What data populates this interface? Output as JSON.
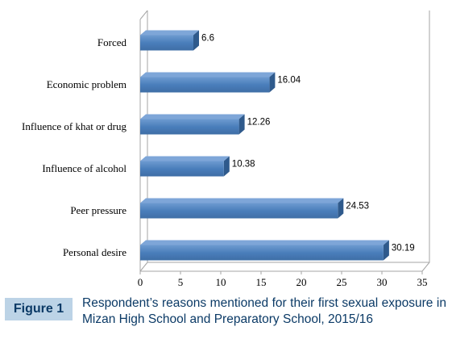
{
  "chart_data": {
    "type": "bar",
    "orientation": "horizontal",
    "categories": [
      "Forced",
      "Economic problem",
      "Influence of khat or drug",
      "Influence of alcohol",
      "Peer pressure",
      "Personal desire"
    ],
    "values": [
      6.6,
      16.04,
      12.26,
      10.38,
      24.53,
      30.19
    ],
    "value_labels": [
      "6.6",
      "16.04",
      "12.26",
      "10.38",
      "24.53",
      "30.19"
    ],
    "x_ticks": [
      "0",
      "5",
      "10",
      "15",
      "20",
      "25",
      "30",
      "35"
    ],
    "xlim": [
      0,
      35
    ],
    "style": "3d",
    "grid": false,
    "bar_color": "#4f81bd"
  },
  "caption": {
    "label": "Figure 1",
    "text": "Respondent’s reasons mentioned for their first sexual exposure in Mizan High School and Preparatory School, 2015/16"
  }
}
